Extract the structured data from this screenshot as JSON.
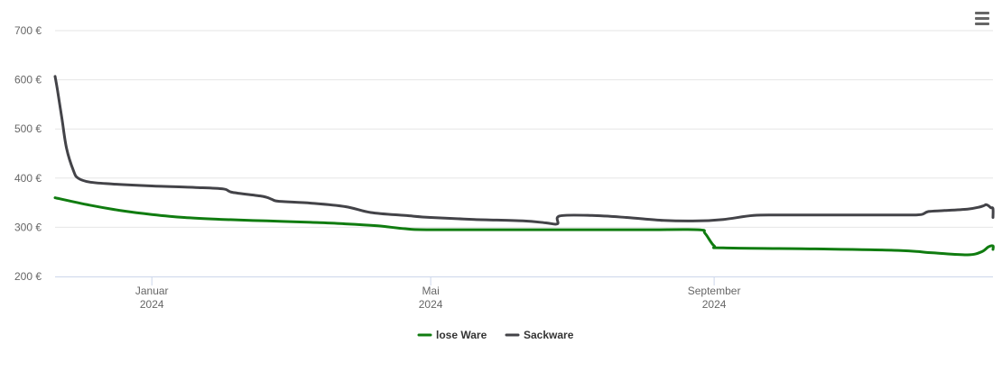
{
  "chart_data": {
    "type": "line",
    "y_ticks": [
      "700 €",
      "600 €",
      "500 €",
      "400 €",
      "300 €",
      "200 €"
    ],
    "y_tick_values": [
      700,
      600,
      500,
      400,
      300,
      200
    ],
    "ylim": [
      200,
      700
    ],
    "x_ticks": [
      {
        "month": "Januar",
        "year": "2024",
        "date": "2024-01-01"
      },
      {
        "month": "Mai",
        "year": "2024",
        "date": "2024-05-01"
      },
      {
        "month": "September",
        "year": "2024",
        "date": "2024-09-01"
      }
    ],
    "xlim": [
      "2023-11-20",
      "2024-12-31"
    ],
    "grid": true,
    "legend_position": "bottom-center",
    "series": [
      {
        "name": "lose Ware",
        "color": "#107c10",
        "points": [
          [
            "2023-11-20",
            360
          ],
          [
            "2023-12-05",
            345
          ],
          [
            "2023-12-20",
            333
          ],
          [
            "2024-01-01",
            326
          ],
          [
            "2024-01-15",
            320
          ],
          [
            "2024-02-01",
            316
          ],
          [
            "2024-02-20",
            313
          ],
          [
            "2024-03-10",
            310
          ],
          [
            "2024-03-25",
            307
          ],
          [
            "2024-04-08",
            303
          ],
          [
            "2024-04-20",
            297
          ],
          [
            "2024-05-01",
            295
          ],
          [
            "2024-06-15",
            295
          ],
          [
            "2024-07-31",
            295
          ],
          [
            "2024-08-25",
            295
          ],
          [
            "2024-08-28",
            288
          ],
          [
            "2024-09-01",
            262
          ],
          [
            "2024-09-05",
            258
          ],
          [
            "2024-10-15",
            256
          ],
          [
            "2024-11-20",
            253
          ],
          [
            "2024-12-05",
            248
          ],
          [
            "2024-12-20",
            244
          ],
          [
            "2024-12-26",
            250
          ],
          [
            "2024-12-29",
            260
          ],
          [
            "2024-12-31",
            262
          ],
          [
            "2024-12-31",
            255
          ]
        ]
      },
      {
        "name": "Sackware",
        "color": "#434348",
        "points": [
          [
            "2023-11-20",
            607
          ],
          [
            "2023-11-21",
            580
          ],
          [
            "2023-11-23",
            520
          ],
          [
            "2023-11-25",
            460
          ],
          [
            "2023-11-28",
            415
          ],
          [
            "2023-11-30",
            400
          ],
          [
            "2023-12-05",
            392
          ],
          [
            "2023-12-15",
            388
          ],
          [
            "2024-01-01",
            384
          ],
          [
            "2024-01-20",
            381
          ],
          [
            "2024-02-01",
            378
          ],
          [
            "2024-02-05",
            371
          ],
          [
            "2024-02-18",
            363
          ],
          [
            "2024-02-22",
            357
          ],
          [
            "2024-02-25",
            353
          ],
          [
            "2024-03-10",
            349
          ],
          [
            "2024-03-25",
            342
          ],
          [
            "2024-04-05",
            330
          ],
          [
            "2024-04-20",
            324
          ],
          [
            "2024-05-01",
            320
          ],
          [
            "2024-05-20",
            316
          ],
          [
            "2024-06-10",
            313
          ],
          [
            "2024-06-20",
            309
          ],
          [
            "2024-06-25",
            307
          ],
          [
            "2024-06-26",
            323
          ],
          [
            "2024-07-10",
            324
          ],
          [
            "2024-07-25",
            320
          ],
          [
            "2024-08-10",
            314
          ],
          [
            "2024-08-25",
            313
          ],
          [
            "2024-09-05",
            316
          ],
          [
            "2024-09-18",
            324
          ],
          [
            "2024-09-30",
            325
          ],
          [
            "2024-10-31",
            325
          ],
          [
            "2024-11-20",
            325
          ],
          [
            "2024-11-25",
            325
          ],
          [
            "2024-11-30",
            326
          ],
          [
            "2024-12-03",
            332
          ],
          [
            "2024-12-10",
            334
          ],
          [
            "2024-12-20",
            337
          ],
          [
            "2024-12-25",
            341
          ],
          [
            "2024-12-27",
            344
          ],
          [
            "2024-12-28",
            346
          ],
          [
            "2024-12-29",
            344
          ],
          [
            "2024-12-30",
            340
          ],
          [
            "2024-12-31",
            338
          ],
          [
            "2024-12-31",
            320
          ]
        ]
      }
    ]
  },
  "legend": {
    "items": [
      {
        "label": "lose Ware",
        "color": "#107c10"
      },
      {
        "label": "Sackware",
        "color": "#434348"
      }
    ]
  },
  "toolbar": {
    "menu_icon": "hamburger-menu-icon"
  }
}
